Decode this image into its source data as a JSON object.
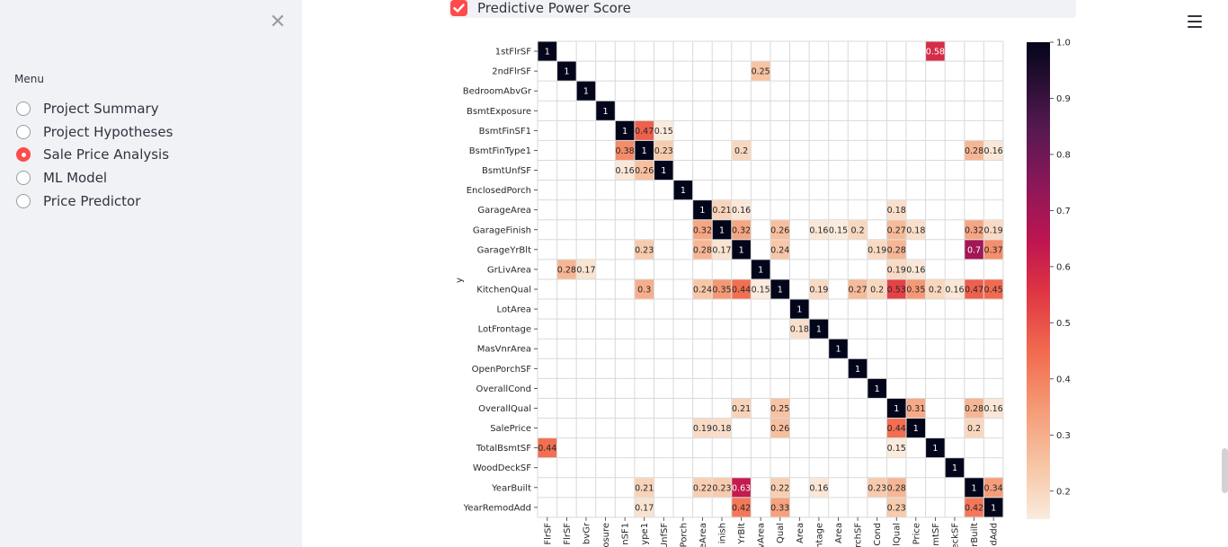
{
  "sidebar": {
    "menu_label": "Menu",
    "items": [
      {
        "label": "Project Summary",
        "selected": false
      },
      {
        "label": "Project Hypotheses",
        "selected": false
      },
      {
        "label": "Sale Price Analysis",
        "selected": true
      },
      {
        "label": "ML Model",
        "selected": false
      },
      {
        "label": "Price Predictor",
        "selected": false
      }
    ],
    "close_icon": "close-x-icon"
  },
  "header": {
    "menu_icon": "hamburger-menu-icon"
  },
  "main": {
    "checkbox_label": "Predictive Power Score",
    "checkbox_checked": true,
    "accent_color": "#ff4b4b"
  },
  "chart_data": {
    "type": "heatmap",
    "ylabel": "y",
    "rows": [
      "1stFlrSF",
      "2ndFlrSF",
      "BedroomAbvGr",
      "BsmtExposure",
      "BsmtFinSF1",
      "BsmtFinType1",
      "BsmtUnfSF",
      "EnclosedPorch",
      "GarageArea",
      "GarageFinish",
      "GarageYrBlt",
      "GrLivArea",
      "KitchenQual",
      "LotArea",
      "LotFrontage",
      "MasVnrArea",
      "OpenPorchSF",
      "OverallCond",
      "OverallQual",
      "SalePrice",
      "TotalBsmtSF",
      "WoodDeckSF",
      "YearBuilt",
      "YearRemodAdd"
    ],
    "column_tick_labels": [
      "FlrSF",
      "FlrSF",
      "bvGr",
      "osure",
      "nSF1",
      "ype1",
      "UnfSF",
      "Porch",
      "eArea",
      "inish",
      "YrBlt",
      "vArea",
      "Qual",
      "Area",
      "ntage",
      "Area",
      "rchSF",
      "Cond",
      "lQual",
      "Price",
      "mtSF",
      "eckSF",
      "rBuilt",
      "dAdd"
    ],
    "cells": [
      [
        0,
        0,
        1
      ],
      [
        0,
        20,
        0.58
      ],
      [
        1,
        1,
        1
      ],
      [
        1,
        11,
        0.25
      ],
      [
        2,
        2,
        1
      ],
      [
        3,
        3,
        1
      ],
      [
        4,
        4,
        1
      ],
      [
        4,
        5,
        0.47
      ],
      [
        4,
        6,
        0.15
      ],
      [
        5,
        4,
        0.38
      ],
      [
        5,
        5,
        1
      ],
      [
        5,
        6,
        0.23
      ],
      [
        5,
        10,
        0.2
      ],
      [
        5,
        22,
        0.28
      ],
      [
        5,
        23,
        0.16
      ],
      [
        6,
        4,
        0.16
      ],
      [
        6,
        5,
        0.26
      ],
      [
        6,
        6,
        1
      ],
      [
        7,
        7,
        1
      ],
      [
        8,
        8,
        1
      ],
      [
        8,
        9,
        0.21
      ],
      [
        8,
        10,
        0.16
      ],
      [
        8,
        18,
        0.18
      ],
      [
        9,
        8,
        0.32
      ],
      [
        9,
        9,
        1
      ],
      [
        9,
        10,
        0.32
      ],
      [
        9,
        12,
        0.26
      ],
      [
        9,
        14,
        0.16
      ],
      [
        9,
        15,
        0.15
      ],
      [
        9,
        16,
        0.2
      ],
      [
        9,
        18,
        0.27
      ],
      [
        9,
        19,
        0.18
      ],
      [
        9,
        22,
        0.32
      ],
      [
        9,
        23,
        0.19
      ],
      [
        10,
        5,
        0.23
      ],
      [
        10,
        8,
        0.28
      ],
      [
        10,
        9,
        0.17
      ],
      [
        10,
        10,
        1
      ],
      [
        10,
        12,
        0.24
      ],
      [
        10,
        17,
        0.19
      ],
      [
        10,
        18,
        0.28
      ],
      [
        10,
        22,
        0.7
      ],
      [
        10,
        23,
        0.37
      ],
      [
        11,
        1,
        0.28
      ],
      [
        11,
        2,
        0.17
      ],
      [
        11,
        11,
        1
      ],
      [
        11,
        18,
        0.19
      ],
      [
        11,
        19,
        0.16
      ],
      [
        12,
        5,
        0.3
      ],
      [
        12,
        8,
        0.24
      ],
      [
        12,
        9,
        0.35
      ],
      [
        12,
        10,
        0.44
      ],
      [
        12,
        11,
        0.15
      ],
      [
        12,
        12,
        1
      ],
      [
        12,
        14,
        0.19
      ],
      [
        12,
        16,
        0.27
      ],
      [
        12,
        17,
        0.2
      ],
      [
        12,
        18,
        0.53
      ],
      [
        12,
        19,
        0.35
      ],
      [
        12,
        20,
        0.2
      ],
      [
        12,
        21,
        0.16
      ],
      [
        12,
        22,
        0.47
      ],
      [
        12,
        23,
        0.45
      ],
      [
        13,
        13,
        1
      ],
      [
        14,
        13,
        0.18
      ],
      [
        14,
        14,
        1
      ],
      [
        15,
        15,
        1
      ],
      [
        16,
        16,
        1
      ],
      [
        17,
        17,
        1
      ],
      [
        18,
        10,
        0.21
      ],
      [
        18,
        12,
        0.25
      ],
      [
        18,
        18,
        1
      ],
      [
        18,
        19,
        0.31
      ],
      [
        18,
        22,
        0.28
      ],
      [
        18,
        23,
        0.16
      ],
      [
        19,
        8,
        0.19
      ],
      [
        19,
        9,
        0.18
      ],
      [
        19,
        12,
        0.26
      ],
      [
        19,
        18,
        0.44
      ],
      [
        19,
        19,
        1
      ],
      [
        19,
        22,
        0.2
      ],
      [
        20,
        0,
        0.44
      ],
      [
        20,
        18,
        0.15
      ],
      [
        20,
        20,
        1
      ],
      [
        21,
        21,
        1
      ],
      [
        22,
        5,
        0.21
      ],
      [
        22,
        8,
        0.22
      ],
      [
        22,
        9,
        0.23
      ],
      [
        22,
        10,
        0.63
      ],
      [
        22,
        12,
        0.22
      ],
      [
        22,
        14,
        0.16
      ],
      [
        22,
        17,
        0.23
      ],
      [
        22,
        18,
        0.28
      ],
      [
        22,
        22,
        1
      ],
      [
        22,
        23,
        0.34
      ],
      [
        23,
        5,
        0.17
      ],
      [
        23,
        10,
        0.42
      ],
      [
        23,
        12,
        0.33
      ],
      [
        23,
        18,
        0.23
      ],
      [
        23,
        22,
        0.42
      ],
      [
        23,
        23,
        1
      ]
    ],
    "colorbar": {
      "min": 0.15,
      "max": 1.0,
      "ticks": [
        0.2,
        0.3,
        0.4,
        0.5,
        0.6,
        0.7,
        0.8,
        0.9,
        1.0
      ],
      "tick_labels": [
        "0.2",
        "0.3",
        "0.4",
        "0.5",
        "0.6",
        "0.7",
        "0.8",
        "0.9",
        "1.0"
      ],
      "colormap": "rocket_r"
    },
    "grid": true
  }
}
